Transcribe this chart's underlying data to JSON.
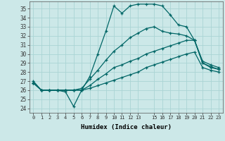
{
  "xlabel": "Humidex (Indice chaleur)",
  "bg_color": "#cce8e8",
  "grid_color": "#aad4d4",
  "line_color": "#006666",
  "xlim": [
    -0.5,
    23.5
  ],
  "ylim": [
    23.5,
    35.8
  ],
  "xticks": [
    0,
    1,
    2,
    3,
    4,
    5,
    6,
    7,
    8,
    9,
    10,
    11,
    12,
    13,
    15,
    16,
    17,
    18,
    19,
    20,
    21,
    22,
    23
  ],
  "yticks": [
    24,
    25,
    26,
    27,
    28,
    29,
    30,
    31,
    32,
    33,
    34,
    35
  ],
  "series": [
    [
      27.0,
      26.0,
      26.0,
      26.0,
      25.8,
      24.2,
      26.0,
      27.5,
      30.0,
      32.5,
      35.3,
      34.5,
      35.3,
      35.5,
      35.5,
      35.5,
      35.3,
      34.3,
      33.2,
      33.0,
      31.5,
      29.2,
      28.8,
      28.5
    ],
    [
      26.8,
      26.0,
      26.0,
      26.0,
      26.0,
      26.0,
      26.2,
      27.2,
      28.2,
      29.3,
      30.3,
      31.0,
      31.8,
      32.3,
      32.8,
      33.0,
      32.5,
      32.3,
      32.2,
      32.0,
      31.5,
      29.0,
      28.6,
      28.3
    ],
    [
      26.8,
      26.0,
      26.0,
      26.0,
      26.0,
      26.0,
      26.0,
      26.5,
      27.2,
      27.8,
      28.5,
      28.8,
      29.2,
      29.5,
      30.0,
      30.3,
      30.6,
      30.9,
      31.2,
      31.5,
      31.5,
      29.0,
      28.5,
      28.3
    ],
    [
      26.8,
      26.0,
      26.0,
      26.0,
      26.0,
      26.0,
      26.0,
      26.2,
      26.5,
      26.8,
      27.1,
      27.4,
      27.7,
      28.0,
      28.5,
      28.8,
      29.1,
      29.4,
      29.7,
      30.0,
      30.2,
      28.5,
      28.2,
      28.0
    ]
  ]
}
